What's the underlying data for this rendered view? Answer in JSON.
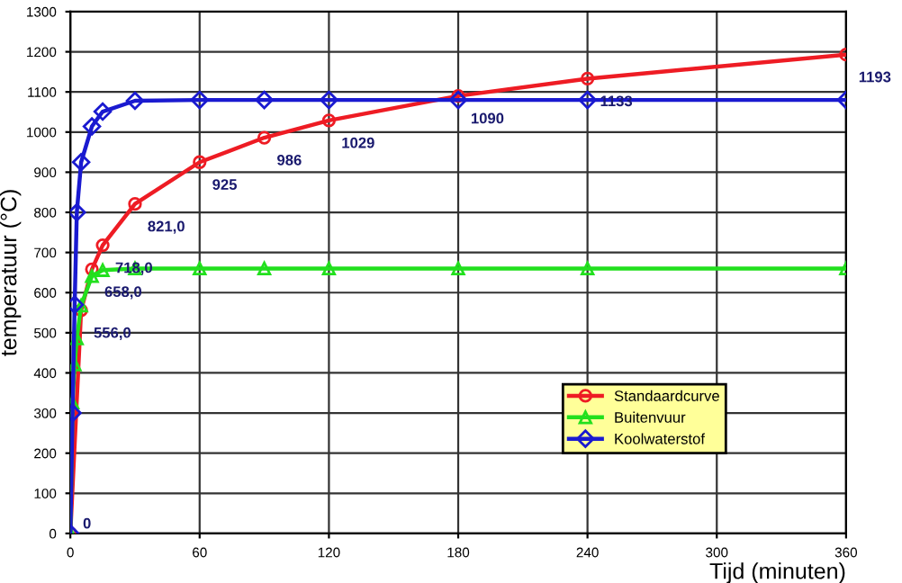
{
  "chart_data": {
    "type": "line",
    "xlabel": "Tijd (minuten)",
    "ylabel": "temperatuur (°C)",
    "xlim": [
      0,
      360
    ],
    "ylim": [
      0,
      1300
    ],
    "xticks": [
      0,
      60,
      120,
      180,
      240,
      300,
      360
    ],
    "yticks": [
      0,
      100,
      200,
      300,
      400,
      500,
      600,
      700,
      800,
      900,
      1000,
      1100,
      1200,
      1300
    ],
    "grid": true,
    "legend": "bottom right",
    "series": [
      {
        "name": "Standaardcurve",
        "color": "#ee1c24",
        "marker": "circle",
        "x": [
          0,
          5,
          10,
          15,
          30,
          60,
          90,
          120,
          180,
          240,
          360
        ],
        "values": [
          0,
          556,
          658,
          718,
          821,
          925,
          986,
          1029,
          1090,
          1133,
          1193
        ],
        "value_labels": [
          "0",
          "556,0",
          "658,0",
          "718,0",
          "821,0",
          "925",
          "986",
          "1029",
          "1090",
          "1133",
          "1193"
        ]
      },
      {
        "name": "Buitenvuur",
        "color": "#22e01e",
        "marker": "triangle",
        "x": [
          0,
          1,
          2,
          3,
          5,
          10,
          15,
          30,
          60,
          90,
          120,
          180,
          240,
          360
        ],
        "values": [
          0,
          326,
          421,
          486,
          568,
          641,
          656,
          660,
          660,
          660,
          660,
          660,
          660,
          660
        ]
      },
      {
        "name": "Koolwaterstof",
        "color": "#1a1ad0",
        "marker": "diamond",
        "x": [
          0,
          1,
          2,
          3,
          5,
          10,
          15,
          30,
          60,
          90,
          120,
          180,
          240,
          360
        ],
        "values": [
          0,
          300,
          570,
          800,
          925,
          1014,
          1051,
          1078,
          1080,
          1080,
          1080,
          1080,
          1080,
          1080
        ]
      }
    ]
  }
}
